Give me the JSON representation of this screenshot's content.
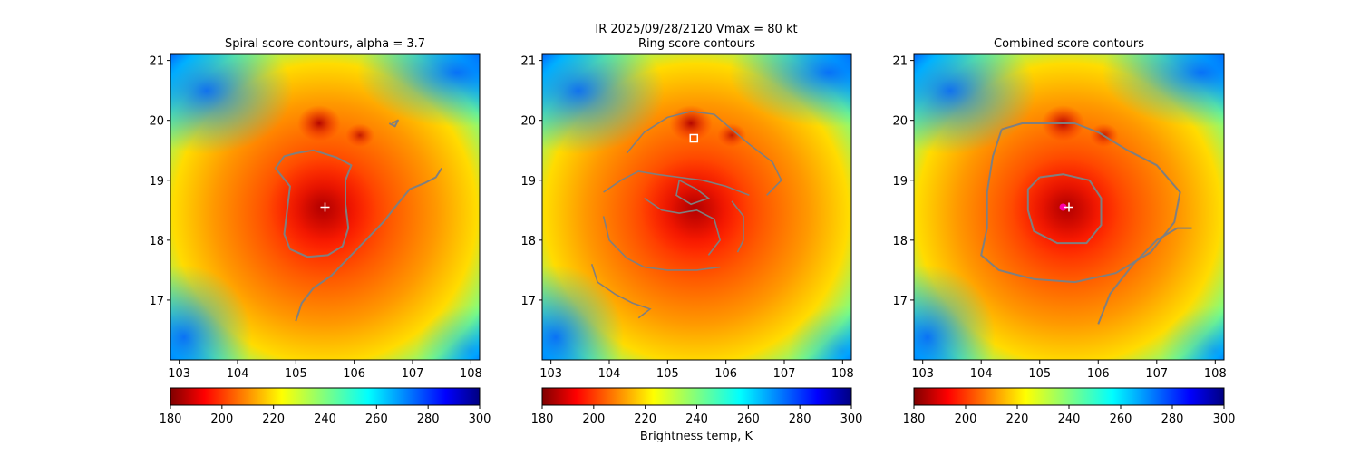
{
  "figure": {
    "suptitle_line1": "IR  2025/09/28/2120    Vmax = 80 kt",
    "colorbar_label": "Brightness temp, K"
  },
  "chart_data": [
    {
      "type": "heatmap",
      "title": "Spiral score contours, alpha =  3.7",
      "xlim": [
        102.85,
        108.15
      ],
      "ylim": [
        16.0,
        21.1
      ],
      "xticks": [
        "103",
        "104",
        "105",
        "106",
        "107",
        "108"
      ],
      "yticks": [
        "17",
        "18",
        "19",
        "20",
        "21"
      ],
      "colormap": "jet_r",
      "colorbar": {
        "range": [
          180,
          300
        ],
        "ticks": [
          "180",
          "200",
          "220",
          "240",
          "260",
          "280",
          "300"
        ]
      },
      "center_marker": {
        "shape": "plus",
        "color": "#ffffff",
        "lon": 105.5,
        "lat": 18.55
      },
      "contours": [
        [
          [
            105.0,
            19.45
          ],
          [
            104.8,
            19.4
          ],
          [
            104.65,
            19.2
          ],
          [
            104.9,
            18.9
          ],
          [
            104.85,
            18.5
          ],
          [
            104.8,
            18.1
          ],
          [
            104.9,
            17.85
          ],
          [
            105.2,
            17.72
          ],
          [
            105.55,
            17.75
          ],
          [
            105.8,
            17.9
          ],
          [
            105.9,
            18.2
          ],
          [
            105.85,
            18.6
          ],
          [
            105.85,
            19.0
          ],
          [
            105.95,
            19.25
          ],
          [
            105.7,
            19.38
          ],
          [
            105.3,
            19.5
          ],
          [
            105.0,
            19.45
          ]
        ],
        [
          [
            105.0,
            16.65
          ],
          [
            105.1,
            16.95
          ],
          [
            105.3,
            17.2
          ],
          [
            105.6,
            17.4
          ],
          [
            105.9,
            17.7
          ],
          [
            106.2,
            18.0
          ],
          [
            106.5,
            18.3
          ],
          [
            106.7,
            18.55
          ],
          [
            106.95,
            18.85
          ],
          [
            107.2,
            18.95
          ],
          [
            107.4,
            19.05
          ],
          [
            107.5,
            19.2
          ]
        ],
        [
          [
            106.65,
            19.95
          ],
          [
            106.75,
            20.0
          ],
          [
            106.7,
            19.9
          ],
          [
            106.6,
            19.95
          ]
        ]
      ]
    },
    {
      "type": "heatmap",
      "title": "Ring score contours",
      "xlim": [
        102.85,
        108.15
      ],
      "ylim": [
        16.0,
        21.1
      ],
      "xticks": [
        "103",
        "104",
        "105",
        "106",
        "107",
        "108"
      ],
      "yticks": [
        "17",
        "18",
        "19",
        "20",
        "21"
      ],
      "colormap": "jet_r",
      "colorbar": {
        "range": [
          180,
          300
        ],
        "ticks": [
          "180",
          "200",
          "220",
          "240",
          "260",
          "280",
          "300"
        ]
      },
      "center_marker": {
        "shape": "square",
        "color": "#ffffff",
        "lon": 105.45,
        "lat": 19.7
      },
      "contours": [
        [
          [
            104.3,
            19.45
          ],
          [
            104.6,
            19.8
          ],
          [
            105.0,
            20.05
          ],
          [
            105.4,
            20.15
          ],
          [
            105.8,
            20.1
          ],
          [
            106.1,
            19.85
          ],
          [
            106.4,
            19.6
          ],
          [
            106.8,
            19.3
          ],
          [
            106.95,
            19.0
          ],
          [
            106.7,
            18.75
          ]
        ],
        [
          [
            103.9,
            18.8
          ],
          [
            104.2,
            19.0
          ],
          [
            104.5,
            19.15
          ],
          [
            104.8,
            19.1
          ],
          [
            105.2,
            19.05
          ],
          [
            105.6,
            19.0
          ],
          [
            106.0,
            18.9
          ],
          [
            106.4,
            18.75
          ]
        ],
        [
          [
            104.6,
            18.7
          ],
          [
            104.9,
            18.5
          ],
          [
            105.2,
            18.45
          ],
          [
            105.5,
            18.5
          ],
          [
            105.8,
            18.35
          ],
          [
            105.9,
            18.0
          ],
          [
            105.7,
            17.75
          ]
        ],
        [
          [
            103.9,
            18.4
          ],
          [
            104.0,
            18.0
          ],
          [
            104.3,
            17.7
          ],
          [
            104.6,
            17.55
          ],
          [
            105.0,
            17.5
          ],
          [
            105.5,
            17.5
          ],
          [
            105.9,
            17.55
          ]
        ],
        [
          [
            103.7,
            17.6
          ],
          [
            103.8,
            17.3
          ],
          [
            104.1,
            17.1
          ],
          [
            104.4,
            16.95
          ],
          [
            104.7,
            16.85
          ],
          [
            104.5,
            16.7
          ]
        ],
        [
          [
            105.2,
            19.0
          ],
          [
            105.5,
            18.85
          ],
          [
            105.7,
            18.7
          ],
          [
            105.4,
            18.6
          ],
          [
            105.15,
            18.75
          ],
          [
            105.2,
            19.0
          ]
        ],
        [
          [
            106.1,
            18.65
          ],
          [
            106.3,
            18.4
          ],
          [
            106.3,
            18.0
          ],
          [
            106.2,
            17.8
          ]
        ]
      ]
    },
    {
      "type": "heatmap",
      "title": "Combined score contours",
      "xlim": [
        102.85,
        108.15
      ],
      "ylim": [
        16.0,
        21.1
      ],
      "xticks": [
        "103",
        "104",
        "105",
        "106",
        "107",
        "108"
      ],
      "yticks": [
        "17",
        "18",
        "19",
        "20",
        "21"
      ],
      "colormap": "jet_r",
      "colorbar": {
        "range": [
          180,
          300
        ],
        "ticks": [
          "180",
          "200",
          "220",
          "240",
          "260",
          "280",
          "300"
        ]
      },
      "center_marker": {
        "shape": "plus",
        "color": "#ffffff",
        "lon": 105.5,
        "lat": 18.55
      },
      "secondary_marker": {
        "shape": "circle",
        "color": "#ff00aa",
        "lon": 105.4,
        "lat": 18.55
      },
      "contours": [
        [
          [
            105.0,
            19.05
          ],
          [
            104.8,
            18.85
          ],
          [
            104.8,
            18.5
          ],
          [
            104.9,
            18.15
          ],
          [
            105.3,
            17.95
          ],
          [
            105.8,
            17.95
          ],
          [
            106.05,
            18.25
          ],
          [
            106.05,
            18.7
          ],
          [
            105.85,
            19.0
          ],
          [
            105.4,
            19.1
          ],
          [
            105.0,
            19.05
          ]
        ],
        [
          [
            104.35,
            19.85
          ],
          [
            104.7,
            19.95
          ],
          [
            105.1,
            19.95
          ],
          [
            105.6,
            19.95
          ],
          [
            106.0,
            19.8
          ],
          [
            106.5,
            19.5
          ],
          [
            107.0,
            19.25
          ],
          [
            107.4,
            18.8
          ],
          [
            107.3,
            18.3
          ],
          [
            106.9,
            17.8
          ],
          [
            106.3,
            17.45
          ],
          [
            105.6,
            17.3
          ],
          [
            104.9,
            17.35
          ],
          [
            104.3,
            17.5
          ],
          [
            104.0,
            17.75
          ],
          [
            104.1,
            18.2
          ],
          [
            104.1,
            18.8
          ],
          [
            104.2,
            19.4
          ],
          [
            104.35,
            19.85
          ]
        ],
        [
          [
            106.0,
            16.6
          ],
          [
            106.2,
            17.1
          ],
          [
            106.6,
            17.6
          ],
          [
            107.0,
            18.0
          ],
          [
            107.35,
            18.2
          ],
          [
            107.6,
            18.2
          ]
        ]
      ]
    }
  ]
}
